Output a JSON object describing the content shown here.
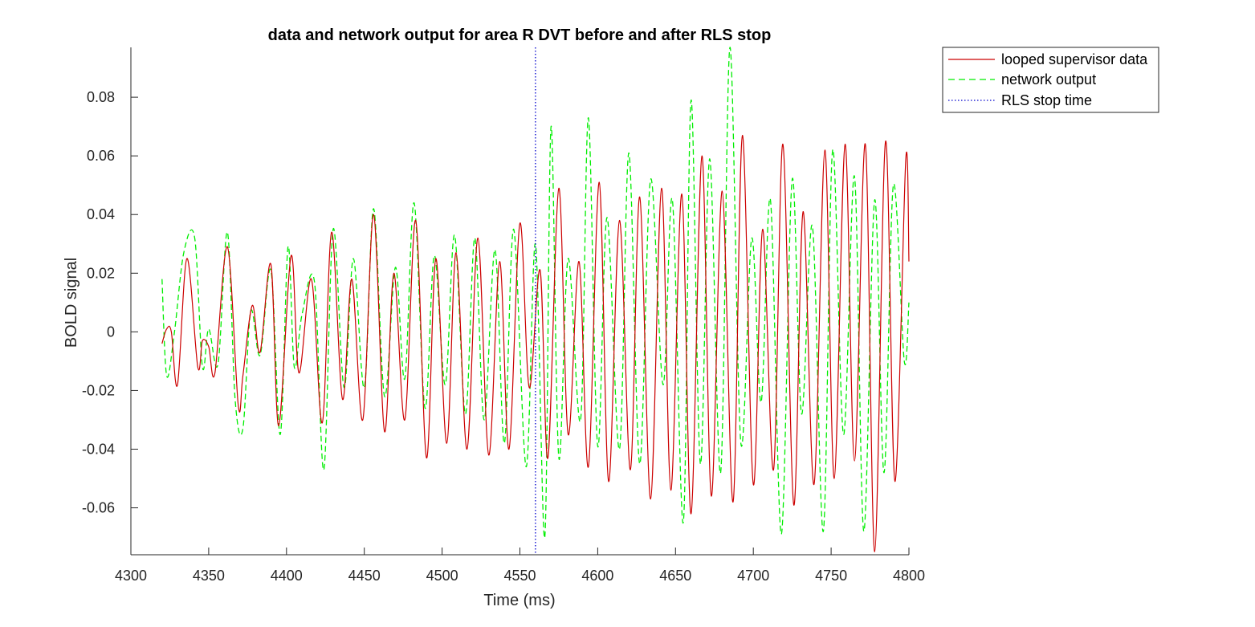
{
  "chart_data": {
    "type": "line",
    "title": "data and network output for area R DVT before and after RLS stop",
    "xlabel": "Time (ms)",
    "ylabel": "BOLD signal",
    "xlim": [
      4300,
      4800
    ],
    "ylim": [
      -0.076,
      0.097
    ],
    "xticks": [
      4300,
      4350,
      4400,
      4450,
      4500,
      4550,
      4600,
      4650,
      4700,
      4750,
      4800
    ],
    "xtick_labels": [
      "4300",
      "4350",
      "4400",
      "4450",
      "4500",
      "4550",
      "4600",
      "4650",
      "4700",
      "4750",
      "4800"
    ],
    "yticks": [
      -0.06,
      -0.04,
      -0.02,
      0,
      0.02,
      0.04,
      0.06,
      0.08
    ],
    "ytick_labels": [
      "-0.06",
      "-0.04",
      "-0.02",
      "0",
      "0.02",
      "0.04",
      "0.06",
      "0.08"
    ],
    "grid": false,
    "legend_position": "outside-top-right",
    "rls_stop_time": 4560,
    "series": [
      {
        "name": "looped supervisor data",
        "color": "#cc0000",
        "style": "solid",
        "x": [
          4320,
          4323,
          4326,
          4330,
          4336,
          4343,
          4346,
          4350,
          4354,
          4362,
          4369,
          4372,
          4378,
          4383,
          4390,
          4395,
          4403,
          4408,
          4416,
          4423,
          4429,
          4436,
          4442,
          4449,
          4456,
          4463,
          4469,
          4476,
          4483,
          4490,
          4496,
          4503,
          4509,
          4516,
          4523,
          4530,
          4537,
          4543,
          4550,
          4556,
          4563,
          4568,
          4575,
          4581,
          4588,
          4594,
          4601,
          4607,
          4614,
          4621,
          4627,
          4634,
          4641,
          4647,
          4654,
          4660,
          4667,
          4673,
          4680,
          4687,
          4693,
          4700,
          4706,
          4713,
          4719,
          4726,
          4732,
          4739,
          4746,
          4752,
          4759,
          4765,
          4772,
          4778,
          4785,
          4791,
          4798,
          4800
        ],
        "y": [
          -0.004,
          0.001,
          0.0,
          -0.018,
          0.025,
          -0.012,
          -0.003,
          -0.005,
          -0.014,
          0.029,
          -0.025,
          -0.015,
          0.009,
          -0.007,
          0.023,
          -0.032,
          0.026,
          -0.014,
          0.018,
          -0.031,
          0.034,
          -0.023,
          0.018,
          -0.03,
          0.04,
          -0.034,
          0.02,
          -0.03,
          0.038,
          -0.043,
          0.025,
          -0.038,
          0.027,
          -0.04,
          0.032,
          -0.042,
          0.024,
          -0.04,
          0.037,
          -0.019,
          0.021,
          -0.043,
          0.049,
          -0.035,
          0.024,
          -0.046,
          0.051,
          -0.051,
          0.038,
          -0.047,
          0.046,
          -0.057,
          0.049,
          -0.054,
          0.047,
          -0.062,
          0.06,
          -0.056,
          0.048,
          -0.058,
          0.067,
          -0.052,
          0.035,
          -0.047,
          0.064,
          -0.059,
          0.041,
          -0.052,
          0.062,
          -0.05,
          0.064,
          -0.044,
          0.064,
          -0.075,
          0.065,
          -0.051,
          0.059,
          0.024
        ]
      },
      {
        "name": "network output",
        "color": "#00ee00",
        "style": "dashed",
        "x": [
          4320,
          4323,
          4328,
          4334,
          4341,
          4346,
          4350,
          4356,
          4362,
          4367,
          4372,
          4377,
          4383,
          4390,
          4396,
          4401,
          4405,
          4410,
          4418,
          4424,
          4430,
          4437,
          4443,
          4450,
          4456,
          4463,
          4470,
          4476,
          4482,
          4489,
          4495,
          4502,
          4508,
          4515,
          4521,
          4527,
          4534,
          4540,
          4546,
          4554,
          4560,
          4566,
          4570,
          4575,
          4581,
          4589,
          4594,
          4600,
          4606,
          4614,
          4620,
          4627,
          4634,
          4642,
          4648,
          4655,
          4660,
          4666,
          4672,
          4679,
          4685,
          4692,
          4699,
          4705,
          4711,
          4718,
          4725,
          4731,
          4738,
          4745,
          4751,
          4758,
          4765,
          4771,
          4778,
          4784,
          4790,
          4797,
          4800
        ],
        "y": [
          0.018,
          -0.015,
          0.0,
          0.027,
          0.032,
          -0.012,
          0.001,
          -0.011,
          0.034,
          -0.023,
          -0.033,
          0.007,
          -0.008,
          0.021,
          -0.035,
          0.029,
          -0.012,
          0.006,
          0.017,
          -0.047,
          0.035,
          -0.019,
          0.025,
          -0.019,
          0.042,
          -0.022,
          0.022,
          -0.016,
          0.044,
          -0.026,
          0.026,
          -0.018,
          0.033,
          -0.028,
          0.032,
          -0.03,
          0.028,
          -0.038,
          0.035,
          -0.046,
          0.03,
          -0.07,
          0.07,
          -0.043,
          0.025,
          -0.03,
          0.073,
          -0.039,
          0.039,
          -0.04,
          0.061,
          -0.045,
          0.052,
          -0.018,
          0.045,
          -0.065,
          0.079,
          -0.045,
          0.059,
          -0.048,
          0.097,
          -0.038,
          0.032,
          -0.024,
          0.045,
          -0.069,
          0.052,
          -0.028,
          0.036,
          -0.068,
          0.062,
          -0.035,
          0.053,
          -0.068,
          0.045,
          -0.048,
          0.05,
          -0.01,
          0.01
        ]
      },
      {
        "name": "RLS stop time",
        "color": "#0000cc",
        "style": "dotted"
      }
    ]
  }
}
